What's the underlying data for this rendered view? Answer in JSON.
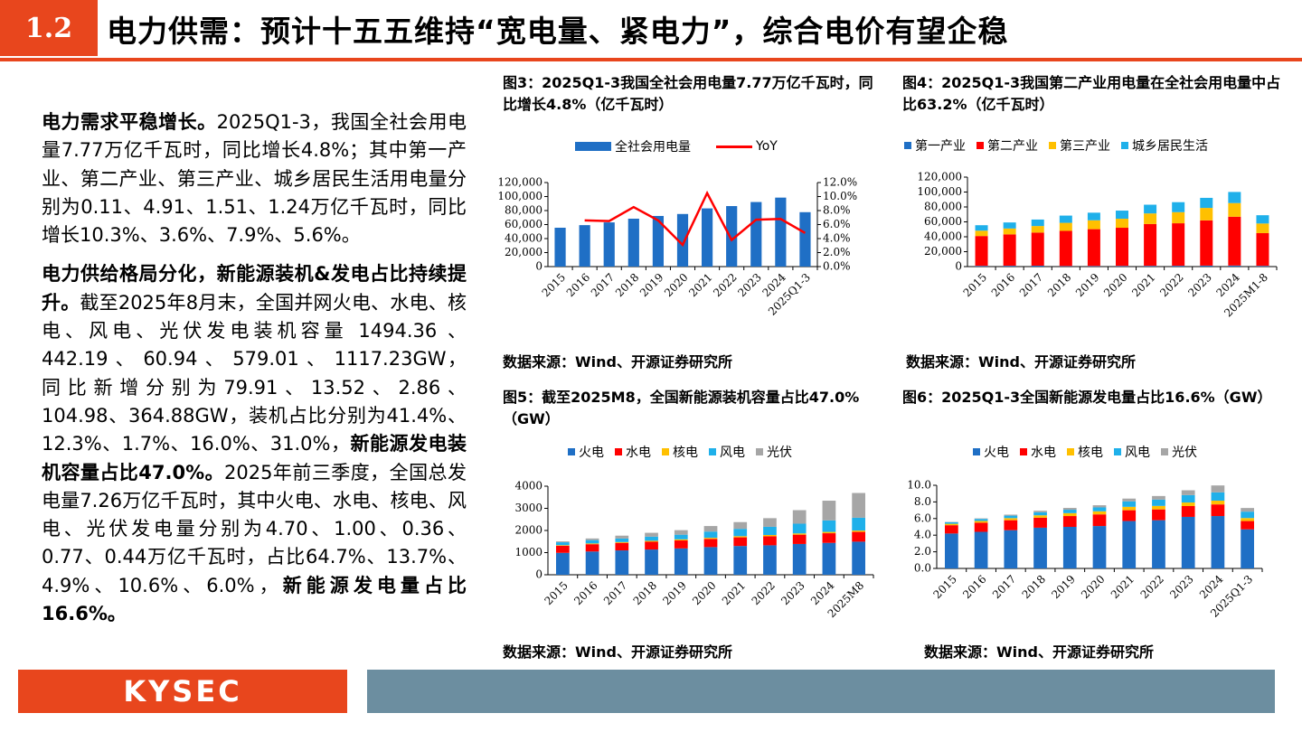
{
  "header": {
    "badge": "1.2",
    "title": "电力供需：预计十五五维持“宽电量、紧电力”，综合电价有望企稳"
  },
  "body": {
    "p1_bold": "电力需求平稳增长。",
    "p1_text": "2025Q1-3，我国全社会用电量7.77万亿千瓦时，同比增长4.8%；其中第一产业、第二产业、第三产业、城乡居民生活用电量分别为0.11、4.91、1.51、1.24万亿千瓦时，同比增长10.3%、3.6%、7.9%、5.6%。",
    "p2_bold": "电力供给格局分化，新能源装机&发电占比持续提升。",
    "p2_text1": "截至2025年8月末，全国并网火电、水电、核电、风电、光伏发电装机容量 1494.36 、 442.19 、 60.94 、 579.01 、 1117.23GW，同比新增分别为79.91、13.52、2.86、104.98、364.88GW，装机占比分别为41.4%、12.3%、1.7%、16.0%、31.0%，",
    "p2_bold2": "新能源发电装机容量占比47.0%。",
    "p2_text2": "2025年前三季度，全国总发电量7.26万亿千瓦时，其中火电、水电、核电、风电、光伏发电量分别为4.70、1.00、0.36、0.77、0.44万亿千瓦时，占比64.7%、13.7%、4.9%、10.6%、6.0%，",
    "p2_bold3": "新能源发电量占比16.6%。"
  },
  "figures": {
    "fig3_title": "图3：2025Q1-3我国全社会用电量7.77万亿千瓦时，同比增长4.8%（亿千瓦时）",
    "fig4_title": "图4：2025Q1-3我国第二产业用电量在全社会用电量中占比63.2%（亿千瓦时）",
    "fig5_title": "图5：截至2025M8，全国新能源装机容量占比47.0%（GW）",
    "fig6_title": "图6：2025Q1-3全国新能源发电量占比16.6%（GW）",
    "src3": "数据来源：Wind、开源证券研究所",
    "src4": "数据来源：Wind、开源证券研究所",
    "src5": "数据来源：Wind、开源证券研究所",
    "src6": "数据来源：Wind、开源证券研究所"
  },
  "footer": {
    "logo": "KYSEC"
  },
  "colors": {
    "accent": "#e8461d",
    "blue": "#1f6fc5",
    "red": "#ff0000",
    "yellow": "#ffc000",
    "cyan": "#1fb0ea",
    "gray": "#a6a6a6",
    "footer_bar": "#6c8ea0"
  },
  "chart_data": [
    {
      "type": "bar",
      "id": "fig3",
      "categories": [
        "2015",
        "2016",
        "2017",
        "2018",
        "2019",
        "2020",
        "2021",
        "2022",
        "2023",
        "2024",
        "2025Q1-3"
      ],
      "series": [
        {
          "name": "全社会用电量",
          "values": [
            55500,
            59200,
            63100,
            68400,
            72300,
            75100,
            83100,
            86400,
            92200,
            98500,
            77700
          ],
          "axis": "left"
        },
        {
          "name": "YoY",
          "type": "line",
          "values": [
            null,
            0.066,
            0.065,
            0.085,
            0.066,
            0.031,
            0.105,
            0.038,
            0.067,
            0.068,
            0.048
          ],
          "axis": "right"
        }
      ],
      "ylim": [
        0,
        120000
      ],
      "yticks": [
        "0",
        "20,000",
        "40,000",
        "60,000",
        "80,000",
        "100,000",
        "120,000"
      ],
      "y2lim": [
        0,
        0.12
      ],
      "y2ticks": [
        "0.0%",
        "2.0%",
        "4.0%",
        "6.0%",
        "8.0%",
        "10.0%",
        "12.0%"
      ]
    },
    {
      "type": "bar",
      "stacked": true,
      "id": "fig4",
      "categories": [
        "2015",
        "2016",
        "2017",
        "2018",
        "2019",
        "2020",
        "2021",
        "2022",
        "2023",
        "2024",
        "2025M1-8"
      ],
      "series": [
        {
          "name": "第一产业",
          "values": [
            1000,
            1100,
            1200,
            700,
            800,
            900,
            1000,
            1100,
            1300,
            1400,
            1000
          ]
        },
        {
          "name": "第二产业",
          "values": [
            40000,
            42100,
            44400,
            47200,
            49400,
            51200,
            56100,
            57000,
            60700,
            65500,
            43900
          ]
        },
        {
          "name": "第三产业",
          "values": [
            7200,
            7900,
            8800,
            10800,
            11900,
            12100,
            14200,
            14900,
            16700,
            18300,
            12900
          ]
        },
        {
          "name": "城乡居民生活",
          "values": [
            7300,
            8100,
            8700,
            9700,
            10200,
            10900,
            11700,
            13400,
            13500,
            14900,
            11100
          ]
        }
      ],
      "ylim": [
        0,
        120000
      ],
      "yticks": [
        "0",
        "20,000",
        "40,000",
        "60,000",
        "80,000",
        "100,000",
        "120,000"
      ]
    },
    {
      "type": "bar",
      "stacked": true,
      "id": "fig5",
      "categories": [
        "2015",
        "2016",
        "2017",
        "2018",
        "2019",
        "2020",
        "2021",
        "2022",
        "2023",
        "2024",
        "2025M8"
      ],
      "series": [
        {
          "name": "火电",
          "values": [
            990,
            1050,
            1100,
            1140,
            1190,
            1250,
            1300,
            1330,
            1390,
            1440,
            1494
          ]
        },
        {
          "name": "水电",
          "values": [
            320,
            330,
            340,
            350,
            360,
            370,
            390,
            410,
            420,
            435,
            442
          ]
        },
        {
          "name": "核电",
          "values": [
            27,
            34,
            36,
            45,
            49,
            50,
            53,
            56,
            57,
            61,
            61
          ]
        },
        {
          "name": "风电",
          "values": [
            130,
            150,
            160,
            185,
            210,
            280,
            330,
            370,
            440,
            520,
            579
          ]
        },
        {
          "name": "光伏",
          "values": [
            40,
            75,
            130,
            175,
            205,
            250,
            305,
            390,
            610,
            890,
            1117
          ]
        }
      ],
      "ylim": [
        0,
        4000
      ],
      "yticks": [
        "0",
        "1000",
        "2000",
        "3000",
        "4000"
      ]
    },
    {
      "type": "bar",
      "stacked": true,
      "id": "fig6",
      "categories": [
        "2015",
        "2016",
        "2017",
        "2018",
        "2019",
        "2020",
        "2021",
        "2022",
        "2023",
        "2024",
        "2025Q1-3"
      ],
      "series": [
        {
          "name": "火电",
          "values": [
            4.2,
            4.4,
            4.6,
            4.9,
            5.0,
            5.1,
            5.7,
            5.8,
            6.2,
            6.3,
            4.7
          ]
        },
        {
          "name": "水电",
          "values": [
            1.0,
            1.1,
            1.2,
            1.2,
            1.3,
            1.4,
            1.3,
            1.3,
            1.3,
            1.4,
            1.0
          ]
        },
        {
          "name": "核电",
          "values": [
            0.17,
            0.21,
            0.25,
            0.29,
            0.35,
            0.37,
            0.41,
            0.42,
            0.43,
            0.45,
            0.36
          ]
        },
        {
          "name": "风电",
          "values": [
            0.19,
            0.24,
            0.3,
            0.37,
            0.41,
            0.47,
            0.66,
            0.76,
            0.89,
            1.0,
            0.77
          ]
        },
        {
          "name": "光伏",
          "values": [
            0.04,
            0.07,
            0.12,
            0.18,
            0.22,
            0.26,
            0.33,
            0.43,
            0.58,
            0.83,
            0.44
          ]
        }
      ],
      "ylim": [
        0,
        10
      ],
      "yticks": [
        "0.0",
        "2.0",
        "4.0",
        "6.0",
        "8.0",
        "10.0"
      ]
    }
  ]
}
